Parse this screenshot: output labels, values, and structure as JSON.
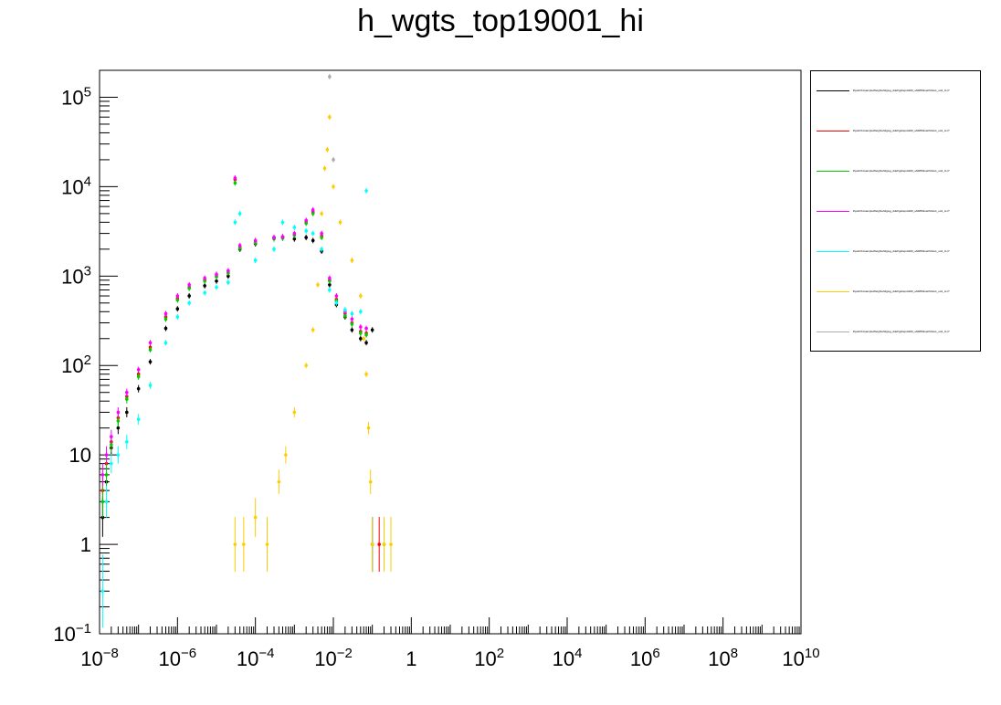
{
  "chart_data": {
    "type": "scatter",
    "title": "h_wgts_top19001_hi",
    "xlabel": "",
    "ylabel": "",
    "x_scale": "log",
    "y_scale": "log",
    "xlim": [
      1e-08,
      10000000000.0
    ],
    "ylim": [
      0.1,
      200000
    ],
    "grid": false,
    "legend_placement": "right",
    "x_tick_labels": [
      {
        "base": "10",
        "exp": "−8",
        "value": 1e-08
      },
      {
        "base": "10",
        "exp": "−6",
        "value": 1e-06
      },
      {
        "base": "10",
        "exp": "−4",
        "value": 0.0001
      },
      {
        "base": "10",
        "exp": "−2",
        "value": 0.01
      },
      {
        "base": "1",
        "exp": "",
        "value": 1
      },
      {
        "base": "10",
        "exp": "2",
        "value": 100.0
      },
      {
        "base": "10",
        "exp": "4",
        "value": 10000.0
      },
      {
        "base": "10",
        "exp": "6",
        "value": 1000000.0
      },
      {
        "base": "10",
        "exp": "8",
        "value": 100000000.0
      },
      {
        "base": "10",
        "exp": "10",
        "value": 10000000000.0
      }
    ],
    "y_tick_labels": [
      {
        "base": "10",
        "exp": "−1",
        "value": 0.1
      },
      {
        "base": "1",
        "exp": "",
        "value": 1
      },
      {
        "base": "10",
        "exp": "",
        "value": 10
      },
      {
        "base": "10",
        "exp": "2",
        "value": 100
      },
      {
        "base": "10",
        "exp": "3",
        "value": 1000
      },
      {
        "base": "10",
        "exp": "4",
        "value": 10000
      },
      {
        "base": "10",
        "exp": "5",
        "value": 100000
      }
    ],
    "series": [
      {
        "name": "lhpeb/rbcsampleWeights/tdgwg_ddef/gsbepdd/d0_e6d8fb3oef/Ul2e/s_ocd_LL/7",
        "color": "#000000",
        "points": [
          [
            1.2e-08,
            2
          ],
          [
            1.5e-08,
            5
          ],
          [
            2e-08,
            12
          ],
          [
            3e-08,
            20
          ],
          [
            5e-08,
            30
          ],
          [
            1e-07,
            55
          ],
          [
            2e-07,
            110
          ],
          [
            5e-07,
            260
          ],
          [
            1e-06,
            430
          ],
          [
            2e-06,
            600
          ],
          [
            5e-06,
            780
          ],
          [
            1e-05,
            880
          ],
          [
            2e-05,
            1000
          ],
          [
            4e-05,
            2000
          ],
          [
            0.0001,
            2300
          ],
          [
            0.0003,
            2700
          ],
          [
            0.0005,
            2750
          ],
          [
            0.001,
            2600
          ],
          [
            0.002,
            2700
          ],
          [
            0.003,
            2500
          ],
          [
            0.005,
            1900
          ],
          [
            0.008,
            800
          ],
          [
            0.012,
            480
          ],
          [
            0.02,
            350
          ],
          [
            0.03,
            250
          ],
          [
            0.05,
            200
          ],
          [
            0.07,
            180
          ],
          [
            0.1,
            250
          ]
        ]
      },
      {
        "name": "lhpeb/rbcsampleWeights/tdgwg_ddef/gsbepdd/d0_e6d8fb3oef/Ul2e/s_ocd_LL/7",
        "color": "#ff0000",
        "points": [
          [
            1.2e-08,
            4
          ],
          [
            1.5e-08,
            8
          ],
          [
            2e-08,
            14
          ],
          [
            3e-08,
            26
          ],
          [
            5e-08,
            45
          ],
          [
            1e-07,
            80
          ],
          [
            2e-07,
            160
          ],
          [
            5e-07,
            350
          ],
          [
            1e-06,
            560
          ],
          [
            2e-06,
            750
          ],
          [
            5e-06,
            900
          ],
          [
            1e-05,
            1000
          ],
          [
            2e-05,
            1100
          ],
          [
            3e-05,
            12000
          ],
          [
            4e-05,
            2100
          ],
          [
            0.0001,
            2400
          ],
          [
            0.0003,
            2650
          ],
          [
            0.0005,
            2700
          ],
          [
            0.001,
            2900
          ],
          [
            0.002,
            4000
          ],
          [
            0.003,
            5200
          ],
          [
            0.005,
            2800
          ],
          [
            0.008,
            900
          ],
          [
            0.012,
            550
          ],
          [
            0.02,
            380
          ],
          [
            0.03,
            300
          ],
          [
            0.05,
            240
          ],
          [
            0.07,
            230
          ],
          [
            0.1,
            1
          ],
          [
            0.15,
            1
          ]
        ]
      },
      {
        "name": "lhpeb/rbcsampleWeights/tdgwg_ddef/gsbepdd/d0_e6d8fb3oef/Ul2e/s_ocd_LL/7",
        "color": "#00cc00",
        "points": [
          [
            1.2e-08,
            3
          ],
          [
            1.5e-08,
            6
          ],
          [
            2e-08,
            13
          ],
          [
            3e-08,
            24
          ],
          [
            5e-08,
            42
          ],
          [
            1e-07,
            75
          ],
          [
            2e-07,
            150
          ],
          [
            5e-07,
            330
          ],
          [
            1e-06,
            540
          ],
          [
            2e-06,
            730
          ],
          [
            5e-06,
            880
          ],
          [
            1e-05,
            980
          ],
          [
            2e-05,
            1080
          ],
          [
            3e-05,
            11000
          ],
          [
            4e-05,
            2050
          ],
          [
            0.0001,
            2350
          ],
          [
            0.0003,
            2600
          ],
          [
            0.0005,
            2650
          ],
          [
            0.001,
            2850
          ],
          [
            0.002,
            3900
          ],
          [
            0.003,
            5000
          ],
          [
            0.005,
            2700
          ],
          [
            0.008,
            880
          ],
          [
            0.012,
            530
          ],
          [
            0.02,
            360
          ],
          [
            0.03,
            290
          ],
          [
            0.05,
            230
          ],
          [
            0.07,
            220
          ],
          [
            0.1,
            1
          ],
          [
            0.2,
            1
          ]
        ]
      },
      {
        "name": "lhpeb/rbcsampleWeights/tdgwg_ddef/gsbepdd/d0_e6d8fb3oef/Ul2e/s_ocd_LL/7",
        "color": "#ff00ff",
        "points": [
          [
            1.2e-08,
            6
          ],
          [
            1.5e-08,
            10
          ],
          [
            2e-08,
            16
          ],
          [
            3e-08,
            30
          ],
          [
            5e-08,
            50
          ],
          [
            1e-07,
            90
          ],
          [
            2e-07,
            180
          ],
          [
            5e-07,
            380
          ],
          [
            1e-06,
            600
          ],
          [
            2e-06,
            800
          ],
          [
            5e-06,
            950
          ],
          [
            1e-05,
            1050
          ],
          [
            2e-05,
            1150
          ],
          [
            3e-05,
            12500
          ],
          [
            4e-05,
            2200
          ],
          [
            0.0001,
            2500
          ],
          [
            0.0003,
            2700
          ],
          [
            0.0005,
            2750
          ],
          [
            0.001,
            3000
          ],
          [
            0.002,
            4200
          ],
          [
            0.003,
            5500
          ],
          [
            0.005,
            3000
          ],
          [
            0.008,
            950
          ],
          [
            0.012,
            600
          ],
          [
            0.02,
            400
          ],
          [
            0.03,
            330
          ],
          [
            0.05,
            270
          ],
          [
            0.07,
            260
          ],
          [
            0.1,
            1
          ]
        ]
      },
      {
        "name": "lhpeb/rbcsampleWeights/tdgwg_ddef/gsbepdd/d0_e6d8fb3oef/Ul2e/s_ocd_LL/7",
        "color": "#00ffff",
        "points": [
          [
            1.2e-08,
            0.3
          ],
          [
            1.5e-08,
            3
          ],
          [
            2e-08,
            8
          ],
          [
            3e-08,
            10
          ],
          [
            5e-08,
            14
          ],
          [
            1e-07,
            25
          ],
          [
            2e-07,
            60
          ],
          [
            5e-07,
            180
          ],
          [
            1e-06,
            350
          ],
          [
            2e-06,
            500
          ],
          [
            5e-06,
            650
          ],
          [
            1e-05,
            750
          ],
          [
            2e-05,
            850
          ],
          [
            3e-05,
            4000
          ],
          [
            4e-05,
            5000
          ],
          [
            0.0001,
            1500
          ],
          [
            0.0003,
            2000
          ],
          [
            0.0005,
            4000
          ],
          [
            0.001,
            3500
          ],
          [
            0.002,
            3200
          ],
          [
            0.003,
            3000
          ],
          [
            0.005,
            2000
          ],
          [
            0.008,
            700
          ],
          [
            0.012,
            500
          ],
          [
            0.02,
            420
          ],
          [
            0.03,
            380
          ],
          [
            0.05,
            400
          ],
          [
            0.07,
            9000
          ],
          [
            0.1,
            1
          ]
        ]
      },
      {
        "name": "lhpeb/rbcsampleWeights/tdgwg_ddef/gsbepdd/d0_e6d8fb3oef/Ul2e/s_ocd_LL/7",
        "color": "#ffcc00",
        "points": [
          [
            3e-05,
            1
          ],
          [
            5e-05,
            1
          ],
          [
            0.0001,
            2
          ],
          [
            0.0002,
            1
          ],
          [
            0.0004,
            5
          ],
          [
            0.0006,
            10
          ],
          [
            0.001,
            30
          ],
          [
            0.002,
            100
          ],
          [
            0.003,
            250
          ],
          [
            0.004,
            800
          ],
          [
            0.005,
            5000
          ],
          [
            0.006,
            16000
          ],
          [
            0.007,
            26000
          ],
          [
            0.008,
            60000
          ],
          [
            0.01,
            10000
          ],
          [
            0.015,
            4000
          ],
          [
            0.03,
            1500
          ],
          [
            0.05,
            600
          ],
          [
            0.06,
            200
          ],
          [
            0.07,
            80
          ],
          [
            0.08,
            20
          ],
          [
            0.09,
            5
          ],
          [
            0.1,
            1
          ],
          [
            0.2,
            1
          ],
          [
            0.3,
            1
          ]
        ]
      },
      {
        "name": "lhpeb/rbcsampleWeights/tdgwg_ddef/gsbepdd/d0_e6d8fb3oef/Ul2e/s_ocd_LL/7",
        "color": "#aaaaaa",
        "points": [
          [
            0.008,
            170000
          ],
          [
            0.01,
            20000
          ]
        ]
      }
    ]
  }
}
